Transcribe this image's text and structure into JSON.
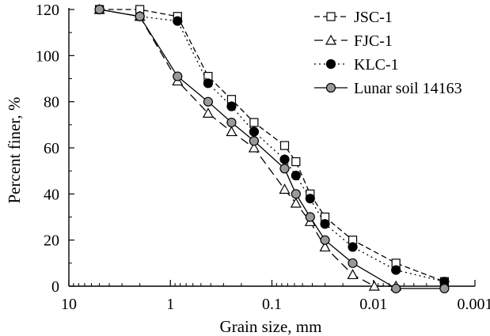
{
  "chart_data": {
    "type": "line",
    "xlabel": "Grain size, mm",
    "ylabel": "Percent finer, %",
    "x_scale": "log",
    "x_reversed": true,
    "xlim": [
      10,
      0.001
    ],
    "ylim": [
      0,
      120
    ],
    "x_ticks": [
      {
        "value": 10,
        "label": "10"
      },
      {
        "value": 1,
        "label": "1"
      },
      {
        "value": 0.1,
        "label": "0.1"
      },
      {
        "value": 0.01,
        "label": "0.01"
      },
      {
        "value": 0.001,
        "label": "0.001"
      }
    ],
    "y_ticks": [
      {
        "value": 0,
        "label": "0"
      },
      {
        "value": 20,
        "label": "20"
      },
      {
        "value": 40,
        "label": "40"
      },
      {
        "value": 60,
        "label": "60"
      },
      {
        "value": 80,
        "label": "80"
      },
      {
        "value": 100,
        "label": "100"
      },
      {
        "value": 120,
        "label": "120"
      }
    ],
    "grid": false,
    "legend_position": "top-right",
    "series": [
      {
        "name": "JSC-1",
        "line": "dashed",
        "marker": "square",
        "marker_fill": "#ffffff",
        "x": [
          5.0,
          2.0,
          0.85,
          0.425,
          0.25,
          0.15,
          0.075,
          0.058,
          0.042,
          0.03,
          0.016,
          0.006,
          0.002
        ],
        "y": [
          120,
          120,
          117,
          91,
          81,
          71,
          61,
          54,
          40,
          30,
          20,
          10,
          2
        ]
      },
      {
        "name": "FJC-1",
        "line": "long-dashed",
        "marker": "triangle",
        "marker_fill": "#ffffff",
        "x": [
          5.0,
          2.0,
          0.85,
          0.425,
          0.25,
          0.15,
          0.075,
          0.058,
          0.042,
          0.03,
          0.016,
          0.0098,
          0.006
        ],
        "y": [
          120,
          117,
          89,
          75,
          67,
          60,
          42,
          36,
          28,
          17,
          5,
          0,
          0
        ]
      },
      {
        "name": "KLC-1",
        "line": "dotted",
        "marker": "circle",
        "marker_fill": "#000000",
        "x": [
          5.0,
          2.0,
          0.85,
          0.425,
          0.25,
          0.15,
          0.075,
          0.058,
          0.042,
          0.03,
          0.016,
          0.006,
          0.002
        ],
        "y": [
          120,
          117,
          115,
          88,
          78,
          67,
          55,
          48,
          38,
          27,
          17,
          7,
          2
        ]
      },
      {
        "name": "Lunar soil 14163",
        "line": "solid",
        "marker": "circle",
        "marker_fill": "#999999",
        "x": [
          5.0,
          2.0,
          0.85,
          0.425,
          0.25,
          0.15,
          0.075,
          0.058,
          0.042,
          0.03,
          0.016,
          0.006,
          0.002
        ],
        "y": [
          120,
          117,
          91,
          80,
          71,
          63,
          51,
          40,
          30,
          20,
          10,
          -1,
          -1
        ]
      }
    ]
  }
}
